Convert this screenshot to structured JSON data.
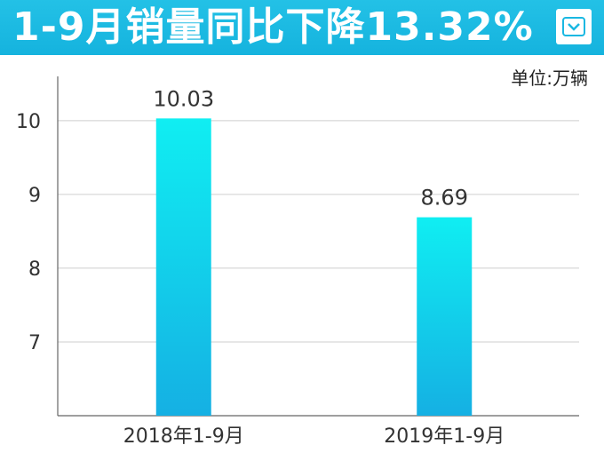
{
  "header": {
    "title": "1-9月销量同比下降13.32%",
    "logo_icon": "chevron-down-icon"
  },
  "unit_label": "单位:万辆",
  "colors": {
    "header_bg": "#1ab8e2",
    "bar_top": "#10eef2",
    "bar_bottom": "#15b0e3",
    "grid": "#cfcfcf",
    "axis": "#666666"
  },
  "chart_data": {
    "type": "bar",
    "categories": [
      "2018年1-9月",
      "2019年1-9月"
    ],
    "values": [
      10.03,
      8.69
    ],
    "value_labels": [
      "10.03",
      "8.69"
    ],
    "yticks": [
      7,
      8,
      9,
      10
    ],
    "ylim": [
      6,
      10.6
    ],
    "grid": true,
    "title": "",
    "xlabel": "",
    "ylabel": ""
  }
}
